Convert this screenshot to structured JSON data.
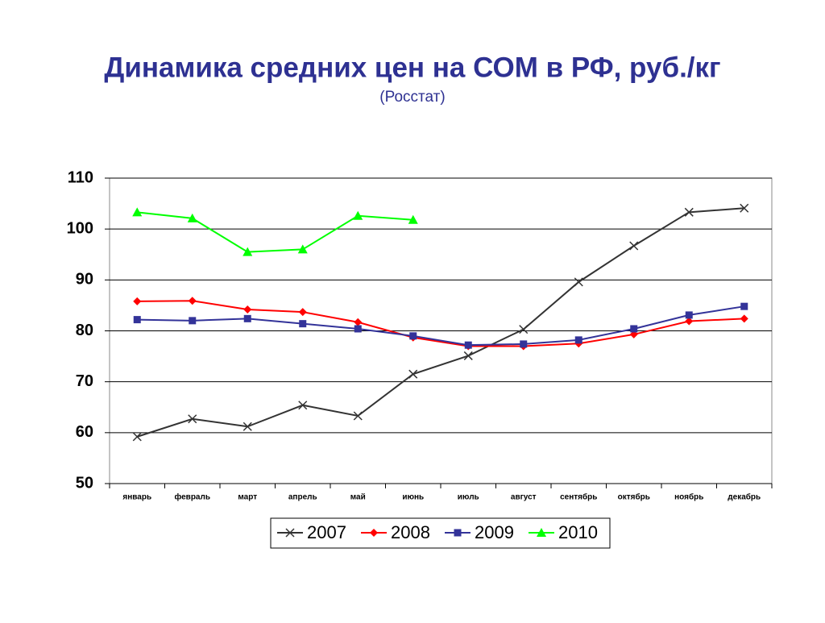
{
  "chart_data": {
    "type": "line",
    "title": "Динамика средних цен на СОМ в РФ, руб./кг",
    "subtitle": "(Росстат)",
    "categories": [
      "январь",
      "февраль",
      "март",
      "апрель",
      "май",
      "июнь",
      "июль",
      "август",
      "сентябрь",
      "октябрь",
      "ноябрь",
      "декабрь"
    ],
    "series": [
      {
        "name": "2007",
        "color": "#333333",
        "marker": "x",
        "values": [
          59.2,
          62.7,
          61.2,
          65.4,
          63.3,
          71.5,
          75.1,
          80.3,
          89.6,
          96.7,
          103.3,
          104.1
        ]
      },
      {
        "name": "2008",
        "color": "#ff0000",
        "marker": "diamond",
        "values": [
          85.8,
          85.9,
          84.2,
          83.7,
          81.7,
          78.7,
          77.0,
          77.0,
          77.5,
          79.3,
          81.9,
          82.4
        ]
      },
      {
        "name": "2009",
        "color": "#333399",
        "marker": "square",
        "values": [
          82.2,
          82.0,
          82.4,
          81.4,
          80.4,
          79.0,
          77.2,
          77.4,
          78.2,
          80.4,
          83.1,
          84.8
        ]
      },
      {
        "name": "2010",
        "color": "#00ff00",
        "marker": "triangle",
        "values": [
          103.3,
          102.1,
          95.5,
          96.0,
          102.6,
          101.8,
          null,
          null,
          null,
          null,
          null,
          null
        ]
      }
    ],
    "ylim": [
      50,
      110
    ],
    "yticks": [
      50,
      60,
      70,
      80,
      90,
      100,
      110
    ],
    "grid": true,
    "legend": "bottom"
  }
}
